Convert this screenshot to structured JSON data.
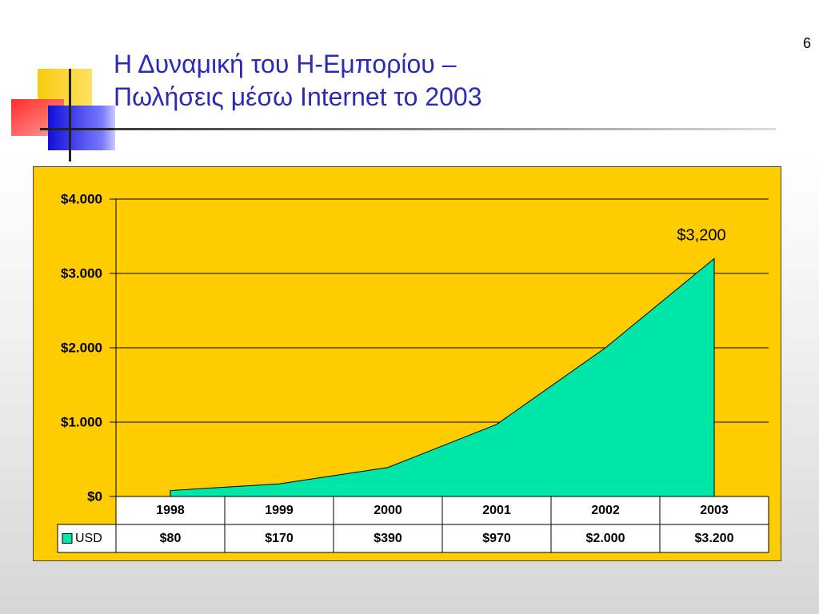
{
  "slide_number": "6",
  "title_line1": "Η Δυναμική του Η-Εμπορίου –",
  "title_line2": "Πωλήσεις μέσω Internet το 2003",
  "colors": {
    "title": "#2b2bb8",
    "chart_background": "#ffcc00",
    "area_fill": "#00e6a8"
  },
  "chart_data": {
    "type": "area",
    "categories": [
      "1998",
      "1999",
      "2000",
      "2001",
      "2002",
      "2003"
    ],
    "series": [
      {
        "name": "USD",
        "values": [
          80,
          170,
          390,
          970,
          2000,
          3200
        ]
      }
    ],
    "ylim": [
      0,
      4000
    ],
    "yticks": [
      0,
      1000,
      2000,
      3000,
      4000
    ],
    "ytick_labels": [
      "$0",
      "$1.000",
      "$2.000",
      "$3.000",
      "$4.000"
    ],
    "table_values": [
      "$80",
      "$170",
      "$390",
      "$970",
      "$2.000",
      "$3.200"
    ],
    "annotation": "$3,200",
    "grid": true,
    "legend": "data-table"
  }
}
